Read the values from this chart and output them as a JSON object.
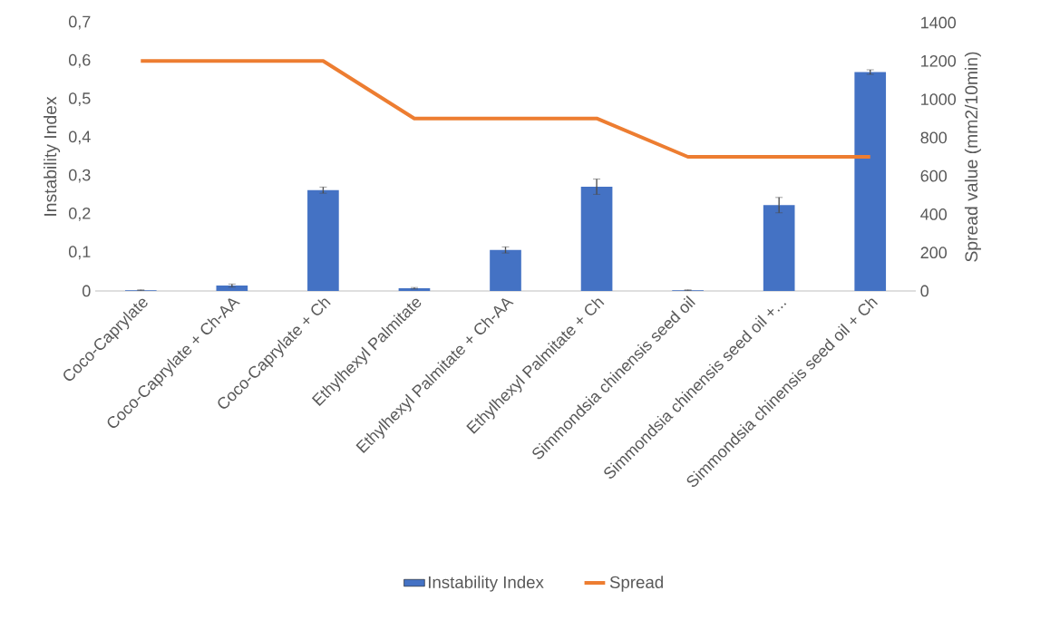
{
  "chart_data": {
    "type": "bar",
    "ylabel": "Instability Index",
    "y2label": "Spread value (mm2/10min)",
    "categories": [
      "Coco-Caprylate",
      "Coco-Caprylate + Ch-AA",
      "Coco-Caprylate + Ch",
      "Ethylhexyl Palmitate",
      "Ethylhexyl Palmitate + Ch-AA",
      "Ethylhexyl Palmitate + Ch",
      "Simmondsia chinensis seed oil",
      "Simmondsia chinensis seed oil +...",
      "Simmondsia chinensis seed oil + Ch"
    ],
    "series": [
      {
        "name": "Instability Index",
        "color": "#4472c4",
        "values": [
          0.002,
          0.014,
          0.263,
          0.007,
          0.107,
          0.272,
          0.002,
          0.224,
          0.571
        ],
        "errors": [
          0.001,
          0.004,
          0.008,
          0.002,
          0.008,
          0.02,
          0.001,
          0.02,
          0.006
        ]
      },
      {
        "name": "Spread",
        "type": "line",
        "axis": "y2",
        "color": "#ed7d31",
        "values": [
          1200,
          1200,
          1200,
          900,
          900,
          900,
          700,
          700,
          700
        ]
      }
    ],
    "ylim": [
      0,
      0.7
    ],
    "yticks": [
      0,
      {
        "value": 0.1,
        "label": "0,1"
      },
      {
        "value": 0.2,
        "label": "0,2"
      },
      {
        "value": 0.3,
        "label": "0,3"
      },
      {
        "value": 0.4,
        "label": "0,4"
      },
      {
        "value": 0.5,
        "label": "0,5"
      },
      {
        "value": 0.6,
        "label": "0,6"
      },
      {
        "value": 0.7,
        "label": "0,7"
      }
    ],
    "y2lim": [
      0,
      1400
    ],
    "y2ticks": [
      0,
      200,
      400,
      600,
      800,
      1000,
      1200,
      1400
    ],
    "legend": "bottom",
    "marker": "none"
  }
}
